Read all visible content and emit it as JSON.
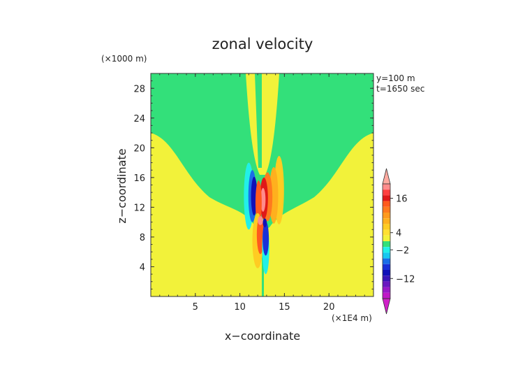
{
  "chart_data": {
    "type": "heatmap",
    "title": "zonal velocity",
    "xlabel": "x−coordinate",
    "ylabel": "z−coordinate",
    "x_unit": "(×1E4 m)",
    "y_unit": "(×1000 m)",
    "annotations": [
      "y=100 m",
      "t=1650 sec"
    ],
    "xlim": [
      0,
      25
    ],
    "ylim": [
      0,
      30
    ],
    "x_ticks": [
      "5",
      "10",
      "15",
      "20"
    ],
    "y_ticks": [
      "4",
      "8",
      "12",
      "16",
      "20",
      "24",
      "28"
    ],
    "colorbar": {
      "labels": [
        "16",
        "4",
        "−2",
        "−12"
      ],
      "levels": [
        {
          "value": 20,
          "color": "#ff8c8c"
        },
        {
          "value": 18,
          "color": "#ff4040"
        },
        {
          "value": 16,
          "color": "#e01818"
        },
        {
          "value": 14,
          "color": "#ff5a1e"
        },
        {
          "value": 12,
          "color": "#ff7a1e"
        },
        {
          "value": 10,
          "color": "#ff9a1e"
        },
        {
          "value": 8,
          "color": "#ffb01e"
        },
        {
          "value": 6,
          "color": "#ffcc22"
        },
        {
          "value": 4,
          "color": "#ffe033"
        },
        {
          "value": 2,
          "color": "#f2f23a"
        },
        {
          "value": 0,
          "color": "#33e07a"
        },
        {
          "value": -2,
          "color": "#22f0e8"
        },
        {
          "value": -4,
          "color": "#18c8f0"
        },
        {
          "value": -6,
          "color": "#1a6ee8"
        },
        {
          "value": -8,
          "color": "#1830d8"
        },
        {
          "value": -10,
          "color": "#1010b8"
        },
        {
          "value": -12,
          "color": "#3a14b8"
        },
        {
          "value": -14,
          "color": "#6a18c0"
        },
        {
          "value": -16,
          "color": "#9a18c8"
        },
        {
          "value": -18,
          "color": "#c018c8"
        }
      ],
      "upper_color": "#ffaaa0",
      "lower_color": "#d020c8"
    },
    "background_colors": {
      "positive": "#f2f23a",
      "negative": "#33e07a"
    }
  }
}
